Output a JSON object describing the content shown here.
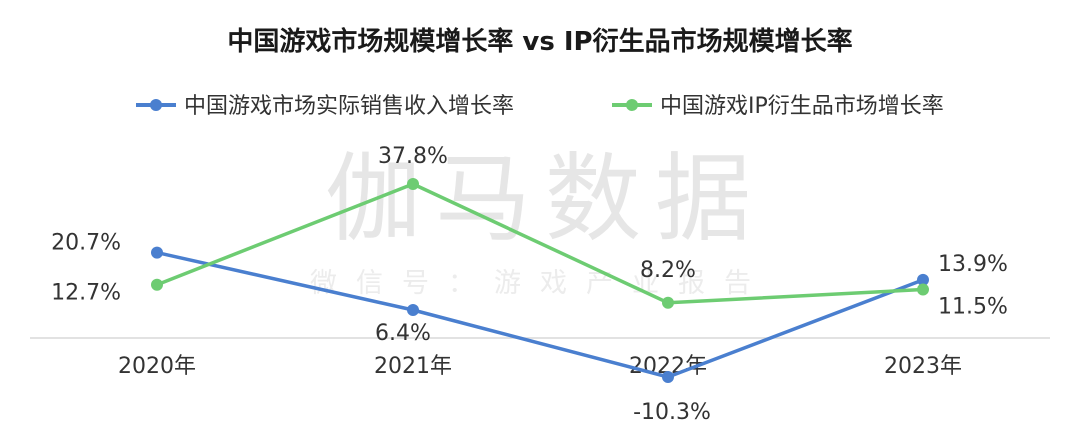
{
  "watermark": {
    "main": "伽马数据",
    "sub": "微信号：游戏产业报告"
  },
  "chart_data": {
    "type": "line",
    "title": "中国游戏市场规模增长率 vs IP衍生品市场规模增长率",
    "categories": [
      "2020年",
      "2021年",
      "2022年",
      "2023年"
    ],
    "series": [
      {
        "name": "中国游戏市场实际销售收入增长率",
        "color": "#4a7fcf",
        "values": [
          20.7,
          6.4,
          -10.3,
          13.9
        ],
        "labels": [
          "20.7%",
          "6.4%",
          "-10.3%",
          "13.9%"
        ]
      },
      {
        "name": "中国游戏IP衍生品市场增长率",
        "color": "#6dcc72",
        "values": [
          12.7,
          37.8,
          8.2,
          11.5
        ],
        "labels": [
          "12.7%",
          "37.8%",
          "8.2%",
          "11.5%"
        ]
      }
    ],
    "ylim": [
      -10.3,
      37.8
    ],
    "grid": false,
    "legend_position": "top"
  }
}
